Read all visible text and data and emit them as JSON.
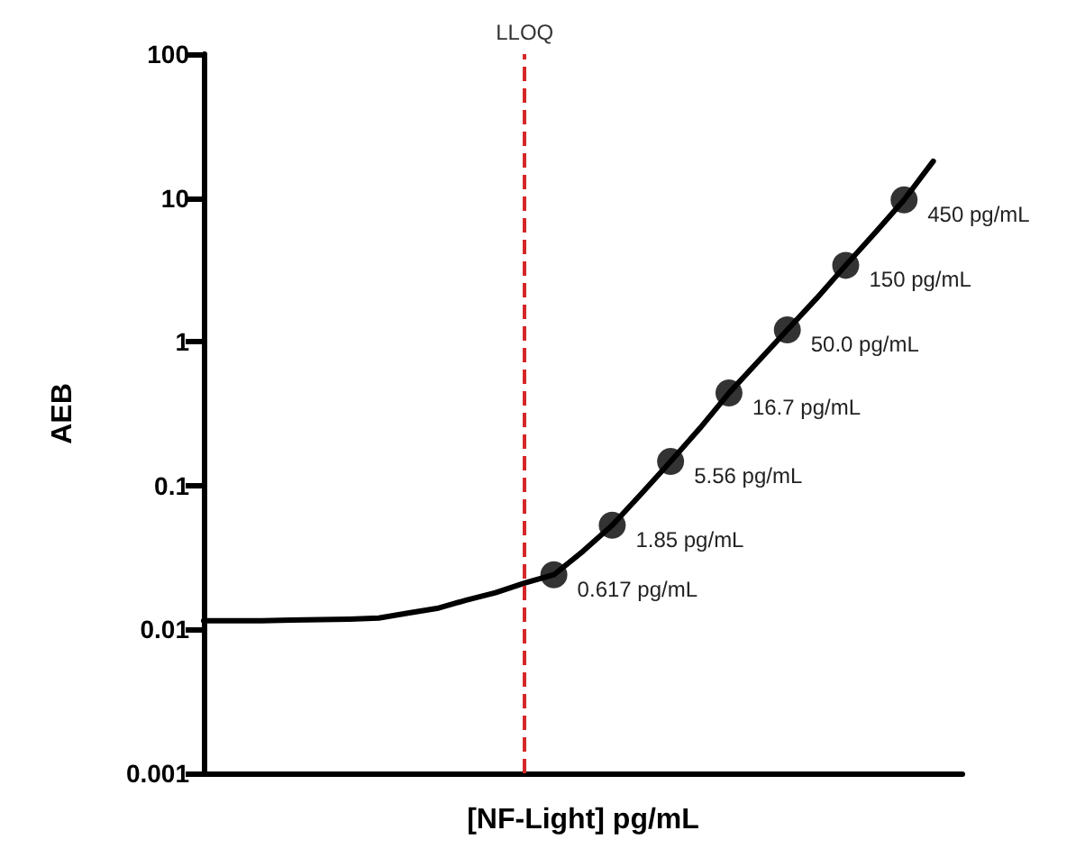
{
  "chart_data": {
    "type": "line",
    "xlabel": "[NF-Light] pg/mL",
    "ylabel": "AEB",
    "categories": [
      null,
      null,
      null,
      null,
      null,
      null,
      null,
      null,
      null,
      null,
      null,
      null,
      null,
      null,
      null,
      null,
      null,
      null,
      null,
      null,
      null,
      null,
      null,
      null,
      null,
      null,
      null
    ],
    "series": [
      {
        "color": "#000000",
        "marker": "none",
        "values": [
          0.0115,
          0.0115,
          0.0115,
          0.0116,
          0.0117,
          0.0118,
          0.012,
          0.013,
          0.014,
          0.016,
          0.018,
          0.021,
          0.024,
          0.035,
          0.053,
          0.088,
          0.147,
          0.25,
          0.44,
          0.73,
          1.21,
          2.0,
          3.4,
          5.7,
          9.7,
          18,
          null
        ]
      },
      {
        "type": "scatter",
        "color": "#000000",
        "marker": "circle",
        "values": [
          null,
          null,
          null,
          null,
          null,
          null,
          null,
          null,
          null,
          null,
          null,
          null,
          0.024,
          null,
          0.053,
          null,
          0.147,
          null,
          0.44,
          null,
          1.21,
          null,
          3.4,
          null,
          9.7,
          null,
          null
        ]
      }
    ],
    "annotations": [
      "LLOQ",
      "0.617 pg/mL",
      "1.85 pg/mL",
      "5.56 pg/mL",
      "16.7 pg/mL",
      "50.0 pg/mL",
      "150 pg/mL",
      "450 pg/mL"
    ],
    "ylim": [
      0.001,
      100
    ],
    "yticks": [
      0.001,
      0.01,
      0.1,
      1,
      10,
      100
    ],
    "log": "y",
    "grid": false,
    "tick_labels": "y"
  }
}
